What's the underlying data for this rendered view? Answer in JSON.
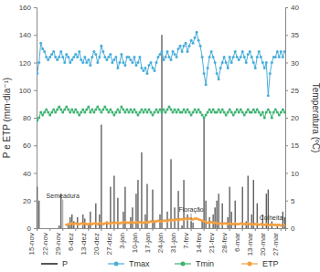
{
  "chart_data": {
    "type": "line",
    "y_label": "P e ETP (mm·dia⁻¹)",
    "y2_label": "Temperatura (ºC)",
    "categories": [
      "15-nov",
      null,
      null,
      null,
      null,
      null,
      null,
      "22-nov",
      null,
      null,
      null,
      null,
      null,
      null,
      "29-nov",
      null,
      null,
      null,
      null,
      null,
      null,
      "6-dez",
      null,
      null,
      null,
      null,
      null,
      null,
      "13-dez",
      null,
      null,
      null,
      null,
      null,
      null,
      "20-dez",
      null,
      null,
      null,
      null,
      null,
      null,
      "27-dez",
      null,
      null,
      null,
      null,
      null,
      null,
      "3-jan",
      null,
      null,
      null,
      null,
      null,
      null,
      "10-jan",
      null,
      null,
      null,
      null,
      null,
      null,
      "17-jan",
      null,
      null,
      null,
      null,
      null,
      null,
      "24-jan",
      null,
      null,
      null,
      null,
      null,
      null,
      "31-jan",
      null,
      null,
      null,
      null,
      null,
      null,
      "7-fev",
      null,
      null,
      null,
      null,
      null,
      null,
      "14-fev",
      null,
      null,
      null,
      null,
      null,
      null,
      "21-fev",
      null,
      null,
      null,
      null,
      null,
      null,
      "28-fev",
      null,
      null,
      null,
      null,
      null,
      null,
      "6-mar",
      null,
      null,
      null,
      null,
      null,
      null,
      "13-mar",
      null,
      null,
      null,
      null,
      null,
      null,
      "20-mar",
      null,
      null,
      null,
      null,
      null,
      null,
      "27-mar",
      null,
      null
    ],
    "ylim": [
      0,
      160
    ],
    "yticks": [
      0,
      20,
      40,
      60,
      80,
      100,
      120,
      140,
      160
    ],
    "y2lim": [
      0,
      40
    ],
    "y2ticks": [
      0,
      5,
      10,
      15,
      20,
      25,
      30,
      35,
      40
    ],
    "legend": "bottom",
    "series": [
      {
        "name": "P",
        "type": "bar",
        "color": "#555555",
        "axis": "y",
        "values": [
          30,
          20,
          0,
          0,
          0,
          0,
          0,
          0,
          0,
          0,
          0,
          0,
          2,
          25,
          0,
          0,
          0,
          3,
          8,
          10,
          5,
          0,
          8,
          0,
          0,
          10,
          7,
          0,
          3,
          12,
          0,
          0,
          18,
          0,
          10,
          75,
          0,
          0,
          5,
          0,
          30,
          0,
          38,
          0,
          22,
          0,
          0,
          12,
          30,
          0,
          0,
          8,
          15,
          0,
          25,
          35,
          0,
          55,
          0,
          10,
          32,
          0,
          0,
          28,
          5,
          0,
          0,
          10,
          140,
          0,
          0,
          12,
          0,
          50,
          0,
          15,
          0,
          27,
          0,
          2,
          35,
          0,
          10,
          0,
          5,
          4,
          0,
          0,
          0,
          0,
          6,
          80,
          20,
          0,
          8,
          0,
          10,
          15,
          20,
          25,
          0,
          18,
          0,
          0,
          8,
          30,
          12,
          0,
          20,
          0,
          0,
          0,
          30,
          0,
          5,
          38,
          0,
          10,
          35,
          0,
          18,
          0,
          0,
          10,
          0,
          25,
          28,
          0,
          5,
          0,
          0,
          3,
          0,
          0,
          12,
          8
        ]
      },
      {
        "name": "Tmax",
        "type": "line",
        "color": "#4aaedb",
        "axis": "y2",
        "marker": "circle",
        "values": [
          28,
          30,
          33.5,
          32.5,
          32,
          31,
          30.5,
          31,
          31.5,
          32,
          31,
          30.5,
          31,
          32,
          31,
          30,
          31.5,
          31,
          30,
          30.5,
          31,
          31.5,
          31,
          32,
          30.5,
          30,
          31,
          30,
          30.5,
          29.5,
          31,
          32,
          31.5,
          30,
          31,
          33,
          32,
          31,
          30.5,
          31,
          31.5,
          30,
          30.5,
          31,
          29,
          30,
          31.5,
          30,
          29.5,
          31,
          31,
          30.5,
          30,
          31,
          29.5,
          30,
          31,
          29,
          28.5,
          29,
          28,
          29.5,
          30,
          29,
          28.5,
          30,
          31,
          31.5,
          32,
          30.5,
          31,
          32,
          31,
          30.5,
          32,
          31.5,
          31,
          32.5,
          33,
          32,
          33,
          33.5,
          32,
          33,
          34,
          33.5,
          34.5,
          35.5,
          34,
          33,
          31,
          28,
          26,
          29,
          31,
          32,
          31,
          30,
          28,
          27,
          29,
          30,
          31,
          30,
          29,
          31,
          30,
          31,
          32,
          31,
          30.5,
          31,
          32,
          31,
          30,
          31.5,
          32,
          31,
          30,
          29,
          31,
          32,
          31,
          30,
          29,
          30,
          24,
          28,
          30,
          31,
          31,
          32,
          31,
          32,
          31,
          32
        ]
      },
      {
        "name": "Tmin",
        "type": "line",
        "color": "#3cb371",
        "axis": "y2",
        "marker": "circle",
        "values": [
          19.5,
          20,
          21,
          20.5,
          21,
          21.5,
          21,
          20.5,
          21,
          21.5,
          21,
          21.5,
          22,
          21.5,
          21,
          21.5,
          22,
          21.5,
          21,
          21.5,
          21,
          21.5,
          21,
          20.5,
          21,
          21.5,
          21,
          21.5,
          22,
          21,
          21.5,
          21,
          21.5,
          22,
          21.5,
          21,
          21.5,
          22,
          21.5,
          21,
          21.5,
          21,
          20.5,
          21,
          21.5,
          21,
          22,
          21.5,
          21,
          21.5,
          21,
          21.5,
          21,
          21.5,
          21,
          20.5,
          21,
          21.5,
          21,
          21.5,
          21,
          21.5,
          21,
          20.5,
          21,
          21.5,
          21,
          21.5,
          21,
          21.5,
          21,
          21.5,
          22,
          21.5,
          21,
          21.5,
          21,
          21.5,
          21,
          21,
          21.5,
          21,
          21.5,
          21,
          20.5,
          21,
          21.5,
          21,
          21.5,
          21,
          20.5,
          20,
          20.5,
          21,
          21.5,
          21,
          21.5,
          21,
          21,
          21.5,
          21,
          21.5,
          21,
          20.5,
          21,
          21.5,
          21,
          20.5,
          21,
          21.5,
          21,
          21.5,
          21,
          20.5,
          21,
          21.5,
          21,
          21,
          21.5,
          21,
          21.5,
          21,
          20.5,
          21,
          20,
          21,
          21.5,
          21,
          20,
          21,
          21.5,
          21,
          20.5,
          21,
          21.5,
          21
        ]
      },
      {
        "name": "ETP",
        "type": "line",
        "color": "#f5a040",
        "axis": "y",
        "marker": "circle",
        "values": [
          null,
          null,
          null,
          null,
          null,
          null,
          null,
          null,
          null,
          null,
          null,
          null,
          null,
          null,
          null,
          null,
          2.5,
          3,
          3,
          3.5,
          3,
          3.5,
          3,
          3,
          3.5,
          3,
          3.5,
          3,
          3,
          3.5,
          3,
          3.5,
          3.5,
          3,
          4,
          3.5,
          3,
          3.5,
          4,
          3.5,
          3.5,
          4,
          3.5,
          4,
          4,
          3.5,
          4,
          4,
          4.5,
          4,
          4,
          4.5,
          4,
          4,
          4.5,
          4,
          4.5,
          4,
          4,
          4.5,
          4,
          4.5,
          5,
          4.5,
          5,
          5,
          5.5,
          5,
          5,
          5.5,
          5.5,
          5,
          6,
          5.5,
          6,
          6,
          6.5,
          6,
          6.5,
          6.5,
          6.5,
          7,
          6.5,
          7,
          7,
          6.5,
          7,
          7,
          6.5,
          6,
          5.5,
          5,
          4.5,
          4,
          4,
          4.5,
          4,
          4,
          3.5,
          3.5,
          3.5,
          3,
          3.5,
          3.5,
          3,
          3.5,
          3,
          3,
          3.5,
          3,
          3,
          3.5,
          3,
          3,
          3,
          3.5,
          3,
          3,
          2.5,
          3,
          3,
          2.5,
          3,
          2.5,
          2.5,
          3,
          2,
          2.5,
          2.5,
          2.5,
          2.5,
          2,
          2.5,
          2,
          2.5,
          2
        ]
      }
    ],
    "annotations": [
      {
        "text": "Semeadura",
        "x": 14,
        "y": 22
      },
      {
        "text": "Floração",
        "x": 84,
        "y": 12
      },
      {
        "text": "Colheita",
        "x": 134,
        "y": 6
      }
    ]
  }
}
